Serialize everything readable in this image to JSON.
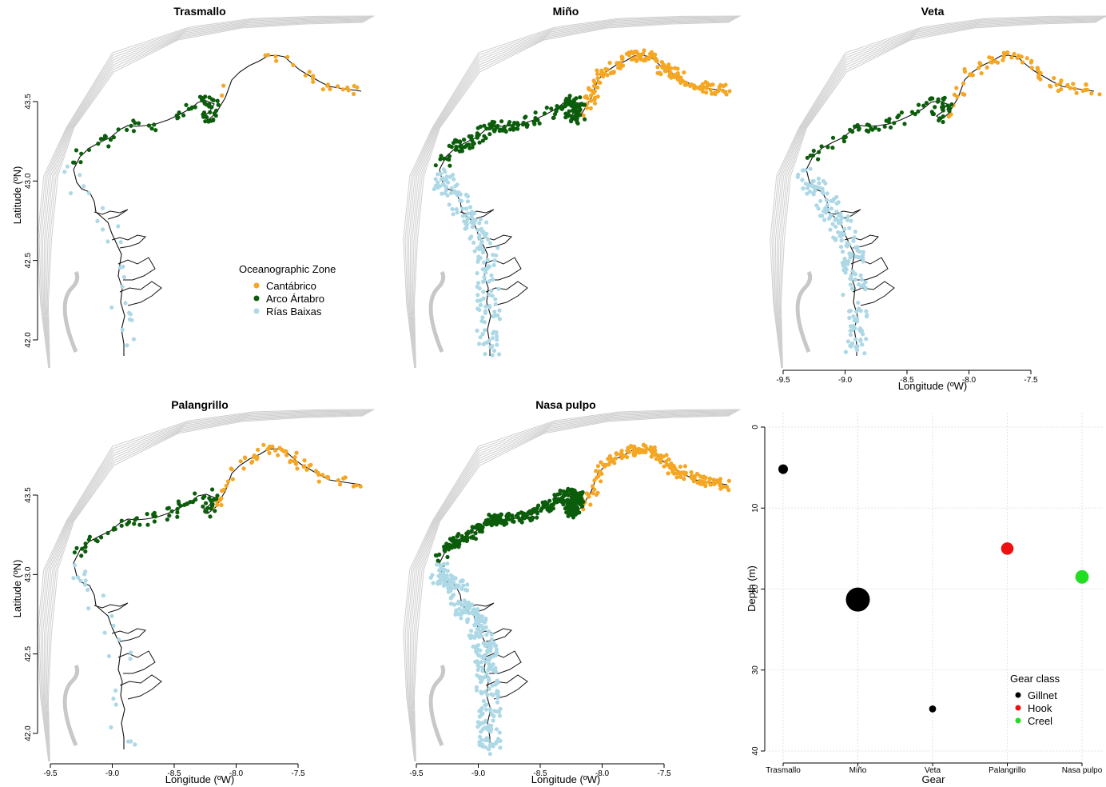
{
  "map_axes": {
    "xlabel": "Longitude (ºW)",
    "ylabel": "Latitude (ºN)",
    "x_ticks": [
      "-9.5",
      "-9.0",
      "-8.5",
      "-8.0",
      "-7.5"
    ],
    "y_ticks": [
      "42.0",
      "42.5",
      "43.0",
      "43.5"
    ],
    "xlim": [
      -9.5,
      -7.5
    ],
    "ylim": [
      42.0,
      43.5
    ]
  },
  "legend": {
    "title": "Oceanographic Zone",
    "items": [
      {
        "label": "Cantábrico",
        "color": "#F5A623"
      },
      {
        "label": "Arco Ártabro",
        "color": "#0B5D0B"
      },
      {
        "label": "Rías Baixas",
        "color": "#ADD8E6"
      }
    ]
  },
  "maps": [
    {
      "title": "Trasmallo",
      "density": {
        "Cantábrico": "low",
        "Arco Ártabro": "medium",
        "Rías Baixas": "low"
      }
    },
    {
      "title": "Miño",
      "density": {
        "Cantábrico": "high",
        "Arco Ártabro": "high",
        "Rías Baixas": "high"
      }
    },
    {
      "title": "Veta",
      "density": {
        "Cantábrico": "medium",
        "Arco Ártabro": "medium",
        "Rías Baixas": "high"
      }
    },
    {
      "title": "Palangrillo",
      "density": {
        "Cantábrico": "medium",
        "Arco Ártabro": "medium",
        "Rías Baixas": "low"
      }
    },
    {
      "title": "Nasa pulpo",
      "density": {
        "Cantábrico": "high",
        "Arco Ártabro": "very high",
        "Rías Baixas": "very high"
      }
    }
  ],
  "chart_data": {
    "type": "scatter",
    "categories": [
      "Trasmallo",
      "Miño",
      "Veta",
      "Palangrillo",
      "Nasa pulpo"
    ],
    "xlabel": "Gear",
    "ylabel": "Depth (m)",
    "ylim": [
      0,
      40
    ],
    "y_reversed": true,
    "y_ticks": [
      "0",
      "10",
      "20",
      "30",
      "40"
    ],
    "grid": true,
    "points": [
      {
        "gear": "Trasmallo",
        "depth": 5.2,
        "class": "Gillnet",
        "relative_size": 0.25
      },
      {
        "gear": "Miño",
        "depth": 21.3,
        "class": "Gillnet",
        "relative_size": 1.0
      },
      {
        "gear": "Veta",
        "depth": 34.8,
        "class": "Gillnet",
        "relative_size": 0.12
      },
      {
        "gear": "Palangrillo",
        "depth": 15.0,
        "class": "Hook",
        "relative_size": 0.4
      },
      {
        "gear": "Nasa pulpo",
        "depth": 18.5,
        "class": "Creel",
        "relative_size": 0.45
      }
    ],
    "legend": {
      "title": "Gear class",
      "position": "bottom-right",
      "items": [
        {
          "label": "Gillnet",
          "color": "#000000"
        },
        {
          "label": "Hook",
          "color": "#EE1111"
        },
        {
          "label": "Creel",
          "color": "#22DD22"
        }
      ]
    }
  }
}
